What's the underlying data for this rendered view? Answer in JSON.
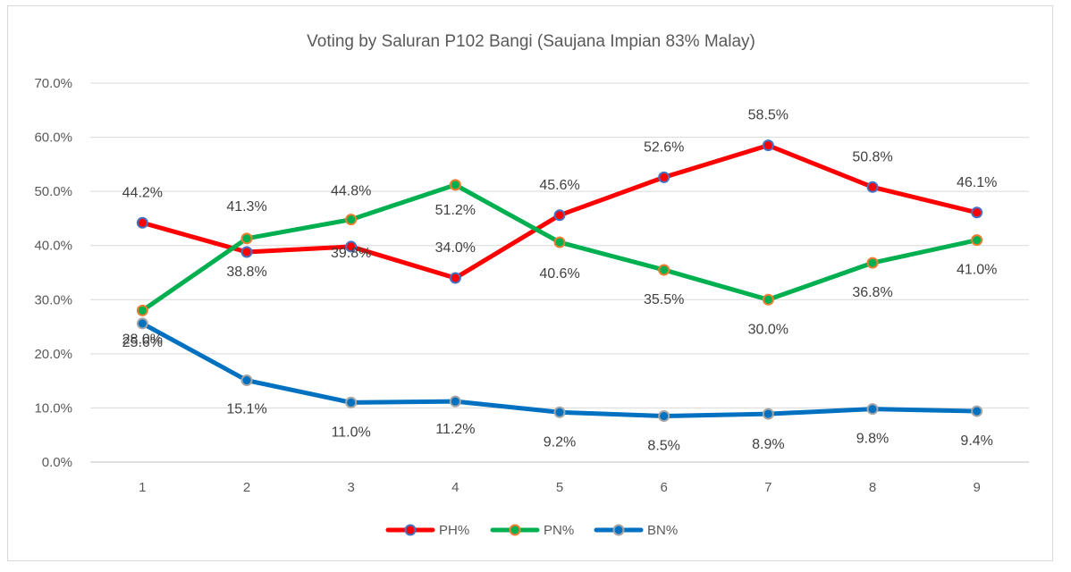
{
  "chart_data": {
    "type": "line",
    "title": "Voting by Saluran P102 Bangi (Saujana Impian 83% Malay)",
    "xlabel": "",
    "ylabel": "",
    "categories": [
      "1",
      "2",
      "3",
      "4",
      "5",
      "6",
      "7",
      "8",
      "9"
    ],
    "ylim": [
      0,
      70
    ],
    "y_ticks": [
      "0.0%",
      "10.0%",
      "20.0%",
      "30.0%",
      "40.0%",
      "50.0%",
      "60.0%",
      "70.0%"
    ],
    "grid": true,
    "legend_position": "bottom",
    "series": [
      {
        "name": "PH%",
        "color": "#ff0000",
        "marker_color": "#4472c4",
        "values": [
          44.2,
          38.8,
          39.8,
          34.0,
          45.6,
          52.6,
          58.5,
          50.8,
          46.1
        ],
        "labels": [
          "44.2%",
          "38.8%",
          "39.8%",
          "34.0%",
          "45.6%",
          "52.6%",
          "58.5%",
          "50.8%",
          "46.1%"
        ]
      },
      {
        "name": "PN%",
        "color": "#00b050",
        "marker_color": "#ed7d31",
        "values": [
          28.0,
          41.3,
          44.8,
          51.2,
          40.6,
          35.5,
          30.0,
          36.8,
          41.0
        ],
        "labels": [
          "28.0%",
          "41.3%",
          "44.8%",
          "51.2%",
          "40.6%",
          "35.5%",
          "30.0%",
          "36.8%",
          "41.0%"
        ]
      },
      {
        "name": "BN%",
        "color": "#0070c0",
        "marker_color": "#a5a5a5",
        "values": [
          25.6,
          15.1,
          11.0,
          11.2,
          9.2,
          8.5,
          8.9,
          9.8,
          9.4
        ],
        "labels": [
          "25.6%",
          "15.1%",
          "11.0%",
          "11.2%",
          "9.2%",
          "8.5%",
          "8.9%",
          "9.8%",
          "9.4%"
        ]
      }
    ]
  }
}
